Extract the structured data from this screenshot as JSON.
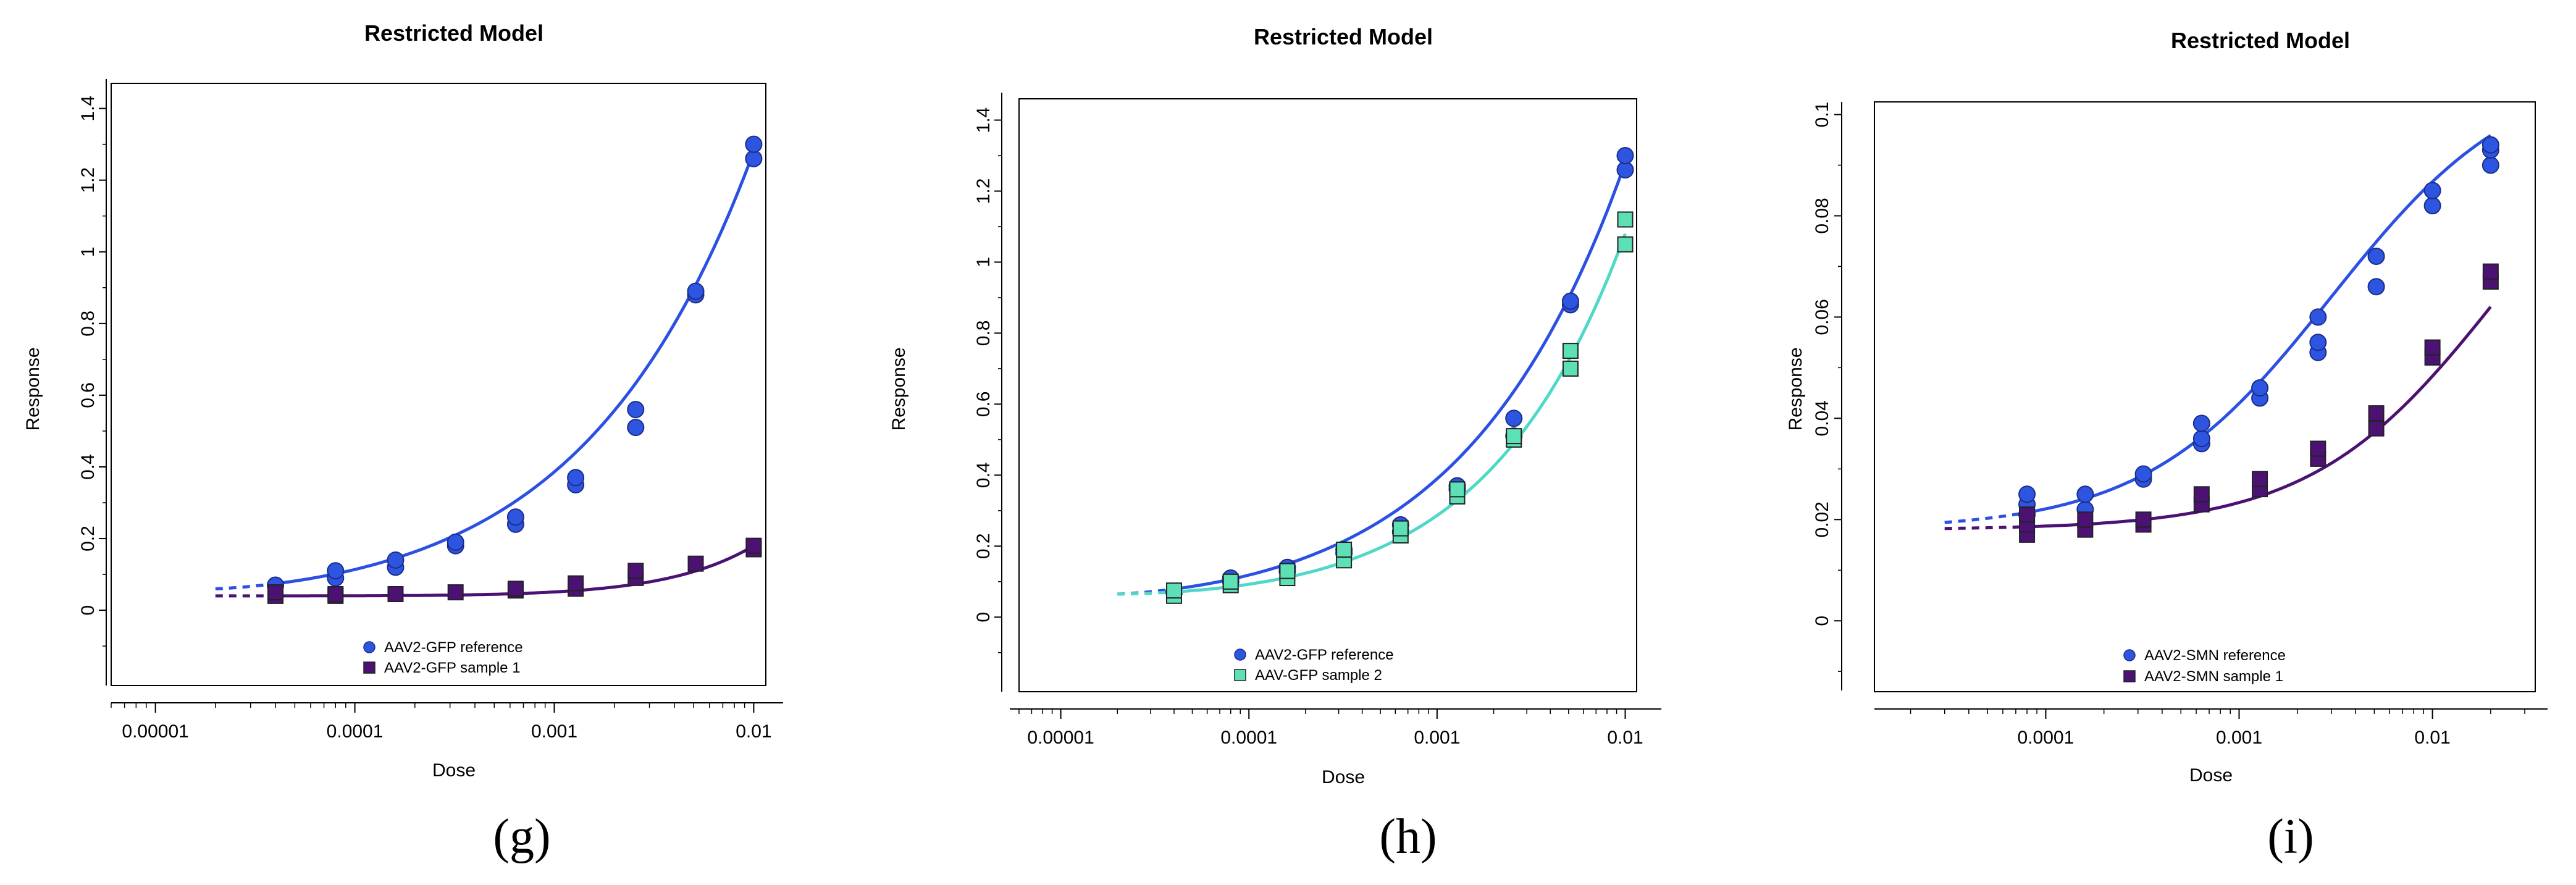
{
  "chart_data": [
    {
      "type": "scatter",
      "title": "Restricted Model",
      "xlabel": "Dose",
      "ylabel": "Response",
      "xscale": "log",
      "xlim": [
        6e-06,
        0.0115
      ],
      "ylim": [
        -0.21,
        1.47
      ],
      "xticks": [
        1e-05,
        0.0001,
        0.001,
        0.01
      ],
      "xtick_labels": [
        "0.00001",
        "0.0001",
        "0.001",
        "0.01"
      ],
      "yticks": [
        0,
        0.2,
        0.4,
        0.6,
        0.8,
        1.0,
        1.2,
        1.4
      ],
      "ytick_labels": [
        "0",
        "0.2",
        "0.4",
        "0.6",
        "0.8",
        "1",
        "1.2",
        "1.4"
      ],
      "caption": "(g)",
      "series": [
        {
          "name": "AAV2-GFP reference",
          "marker": "circle",
          "color": "#2E55E0",
          "curve_color": "#2B50E3",
          "points": [
            [
              4e-05,
              0.07
            ],
            [
              8e-05,
              0.09
            ],
            [
              8e-05,
              0.11
            ],
            [
              0.00016,
              0.12
            ],
            [
              0.00016,
              0.14
            ],
            [
              0.00032,
              0.18
            ],
            [
              0.00032,
              0.19
            ],
            [
              0.00064,
              0.24
            ],
            [
              0.00064,
              0.26
            ],
            [
              0.00128,
              0.35
            ],
            [
              0.00128,
              0.37
            ],
            [
              0.00256,
              0.51
            ],
            [
              0.00256,
              0.56
            ],
            [
              0.00512,
              0.88
            ],
            [
              0.00512,
              0.89
            ],
            [
              0.01,
              1.26
            ],
            [
              0.01,
              1.3
            ]
          ],
          "curve": {
            "x0": 2e-05,
            "x_start": 4e-05,
            "x_end": 0.01,
            "y0": 0.06,
            "y_end": 1.28,
            "exponent": 1.3
          }
        },
        {
          "name": "AAV2-GFP sample 1",
          "marker": "square",
          "color": "#4B1273",
          "curve_color": "#4B1273",
          "points": [
            [
              4e-05,
              0.04
            ],
            [
              4e-05,
              0.05
            ],
            [
              8e-05,
              0.04
            ],
            [
              8e-05,
              0.045
            ],
            [
              0.00016,
              0.045
            ],
            [
              0.00032,
              0.05
            ],
            [
              0.00064,
              0.055
            ],
            [
              0.00064,
              0.06
            ],
            [
              0.00128,
              0.06
            ],
            [
              0.00128,
              0.075
            ],
            [
              0.00256,
              0.09
            ],
            [
              0.00256,
              0.11
            ],
            [
              0.00512,
              0.13
            ],
            [
              0.01,
              0.17
            ],
            [
              0.01,
              0.18
            ]
          ],
          "curve": {
            "x0": 2e-05,
            "x_start": 4e-05,
            "x_end": 0.01,
            "y0": 0.04,
            "y_end": 0.18,
            "exponent": 2.5
          }
        }
      ]
    },
    {
      "type": "scatter",
      "title": "Restricted Model",
      "xlabel": "Dose",
      "ylabel": "Response",
      "xscale": "log",
      "xlim": [
        6e-06,
        0.0115
      ],
      "ylim": [
        -0.21,
        1.46
      ],
      "xticks": [
        1e-05,
        0.0001,
        0.001,
        0.01
      ],
      "xtick_labels": [
        "0.00001",
        "0.0001",
        "0.001",
        "0.01"
      ],
      "yticks": [
        0,
        0.2,
        0.4,
        0.6,
        0.8,
        1.0,
        1.2,
        1.4
      ],
      "ytick_labels": [
        "0",
        "0.2",
        "0.4",
        "0.6",
        "0.8",
        "1",
        "1.2",
        "1.4"
      ],
      "caption": "(h)",
      "series": [
        {
          "name": "AAV2-GFP reference",
          "marker": "circle",
          "color": "#2E55E0",
          "curve_color": "#2B50E3",
          "points": [
            [
              4e-05,
              0.07
            ],
            [
              8e-05,
              0.1
            ],
            [
              8e-05,
              0.11
            ],
            [
              0.00016,
              0.13
            ],
            [
              0.00016,
              0.14
            ],
            [
              0.00032,
              0.18
            ],
            [
              0.00032,
              0.19
            ],
            [
              0.00064,
              0.24
            ],
            [
              0.00064,
              0.26
            ],
            [
              0.00128,
              0.36
            ],
            [
              0.00128,
              0.37
            ],
            [
              0.00256,
              0.51
            ],
            [
              0.00256,
              0.56
            ],
            [
              0.00512,
              0.88
            ],
            [
              0.00512,
              0.89
            ],
            [
              0.01,
              1.26
            ],
            [
              0.01,
              1.3
            ]
          ],
          "curve": {
            "x0": 2e-05,
            "x_start": 4e-05,
            "x_end": 0.01,
            "y0": 0.065,
            "y_end": 1.28,
            "exponent": 1.3
          }
        },
        {
          "name": "AAV-GFP sample 2",
          "marker": "square",
          "color": "#5DE0B5",
          "curve_color": "#4FD8C8",
          "points": [
            [
              4e-05,
              0.06
            ],
            [
              4e-05,
              0.075
            ],
            [
              8e-05,
              0.09
            ],
            [
              8e-05,
              0.1
            ],
            [
              0.00016,
              0.11
            ],
            [
              0.00016,
              0.13
            ],
            [
              0.00032,
              0.16
            ],
            [
              0.00032,
              0.19
            ],
            [
              0.00064,
              0.23
            ],
            [
              0.00064,
              0.25
            ],
            [
              0.00128,
              0.34
            ],
            [
              0.00128,
              0.36
            ],
            [
              0.00256,
              0.5
            ],
            [
              0.00256,
              0.51
            ],
            [
              0.00512,
              0.7
            ],
            [
              0.00512,
              0.75
            ],
            [
              0.01,
              1.05
            ],
            [
              0.01,
              1.12
            ]
          ],
          "curve": {
            "x0": 2e-05,
            "x_start": 4e-05,
            "x_end": 0.01,
            "y0": 0.065,
            "y_end": 1.08,
            "exponent": 1.5
          }
        }
      ]
    },
    {
      "type": "scatter",
      "title": "Restricted Model",
      "xlabel": "Dose",
      "ylabel": "Response",
      "xscale": "log",
      "xlim": [
        1.3e-05,
        0.034
      ],
      "ylim": [
        -0.014,
        0.1025
      ],
      "xticks": [
        0.0001,
        0.001,
        0.01
      ],
      "xtick_labels": [
        "0.0001",
        "0.001",
        "0.01"
      ],
      "yticks": [
        0,
        0.02,
        0.04,
        0.06,
        0.08,
        0.1
      ],
      "ytick_labels": [
        "0",
        "0.02",
        "0.04",
        "0.06",
        "0.08",
        "0.1"
      ],
      "caption": "(i)",
      "series": [
        {
          "name": "AAV2-SMN reference",
          "marker": "circle",
          "color": "#2E55E0",
          "curve_color": "#2B50E3",
          "points": [
            [
              8e-05,
              0.021
            ],
            [
              8e-05,
              0.023
            ],
            [
              8e-05,
              0.025
            ],
            [
              0.00016,
              0.022
            ],
            [
              0.00016,
              0.025
            ],
            [
              0.00032,
              0.028
            ],
            [
              0.00032,
              0.029
            ],
            [
              0.00064,
              0.035
            ],
            [
              0.00064,
              0.036
            ],
            [
              0.00064,
              0.039
            ],
            [
              0.00128,
              0.044
            ],
            [
              0.00128,
              0.046
            ],
            [
              0.00256,
              0.053
            ],
            [
              0.00256,
              0.055
            ],
            [
              0.00256,
              0.06
            ],
            [
              0.00512,
              0.066
            ],
            [
              0.00512,
              0.072
            ],
            [
              0.01,
              0.082
            ],
            [
              0.01,
              0.085
            ],
            [
              0.02,
              0.09
            ],
            [
              0.02,
              0.093
            ],
            [
              0.02,
              0.094
            ]
          ],
          "curve": {
            "type": "sigmoid",
            "x_start": 8e-05,
            "x_end": 0.02,
            "x_dash_start": 3e-05,
            "bottom": 0.018,
            "top": 0.11,
            "ed50": 0.003,
            "slope": 0.9
          }
        },
        {
          "name": "AAV2-SMN sample 1",
          "marker": "square",
          "color": "#4B1273",
          "curve_color": "#4B1273",
          "points": [
            [
              8e-05,
              0.017
            ],
            [
              8e-05,
              0.019
            ],
            [
              8e-05,
              0.021
            ],
            [
              0.00016,
              0.018
            ],
            [
              0.00016,
              0.02
            ],
            [
              0.00032,
              0.019
            ],
            [
              0.00032,
              0.02
            ],
            [
              0.00064,
              0.023
            ],
            [
              0.00064,
              0.025
            ],
            [
              0.00128,
              0.026
            ],
            [
              0.00128,
              0.028
            ],
            [
              0.00256,
              0.032
            ],
            [
              0.00256,
              0.034
            ],
            [
              0.00512,
              0.038
            ],
            [
              0.00512,
              0.041
            ],
            [
              0.01,
              0.052
            ],
            [
              0.01,
              0.054
            ],
            [
              0.02,
              0.067
            ],
            [
              0.02,
              0.069
            ]
          ],
          "curve": {
            "type": "sigmoid",
            "x_start": 8e-05,
            "x_end": 0.02,
            "x_dash_start": 3e-05,
            "bottom": 0.018,
            "top": 0.11,
            "ed50": 0.022,
            "slope": 0.9
          }
        }
      ]
    }
  ]
}
